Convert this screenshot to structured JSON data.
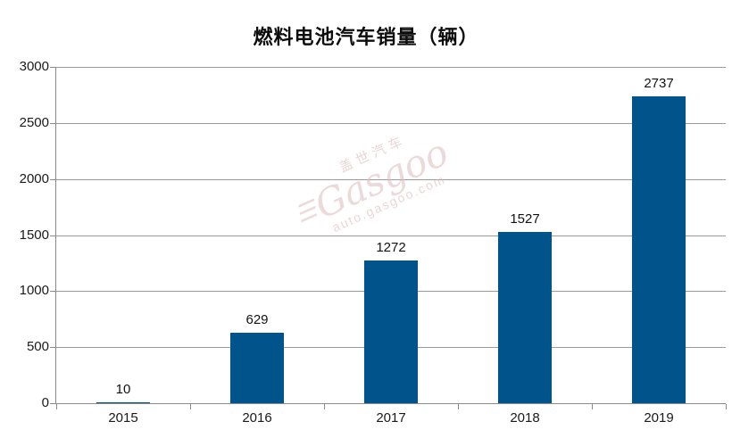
{
  "title": "燃料电池汽车销量（辆）",
  "watermark": {
    "brand_cn": "盖世汽车",
    "brand_en": "Gasgoo",
    "site": "auto.gasgoo.com",
    "logo_glyph": "☰"
  },
  "colors": {
    "bar": "#00548C",
    "gridline": "#9a9a9a",
    "axis": "#8a8a8a",
    "text": "#111111",
    "watermark": "#ddbcbc"
  },
  "chart_data": {
    "type": "bar",
    "title": "燃料电池汽车销量（辆）",
    "categories": [
      "2015",
      "2016",
      "2017",
      "2018",
      "2019"
    ],
    "values": [
      10,
      629,
      1272,
      1527,
      2737
    ],
    "data_labels": [
      "10",
      "629",
      "1272",
      "1527",
      "2737"
    ],
    "xlabel": "",
    "ylabel": "",
    "ylim": [
      0,
      3000
    ],
    "y_ticks": [
      0,
      500,
      1000,
      1500,
      2000,
      2500,
      3000
    ],
    "grid": true,
    "legend_position": "none",
    "bar_color": "#00548C"
  }
}
